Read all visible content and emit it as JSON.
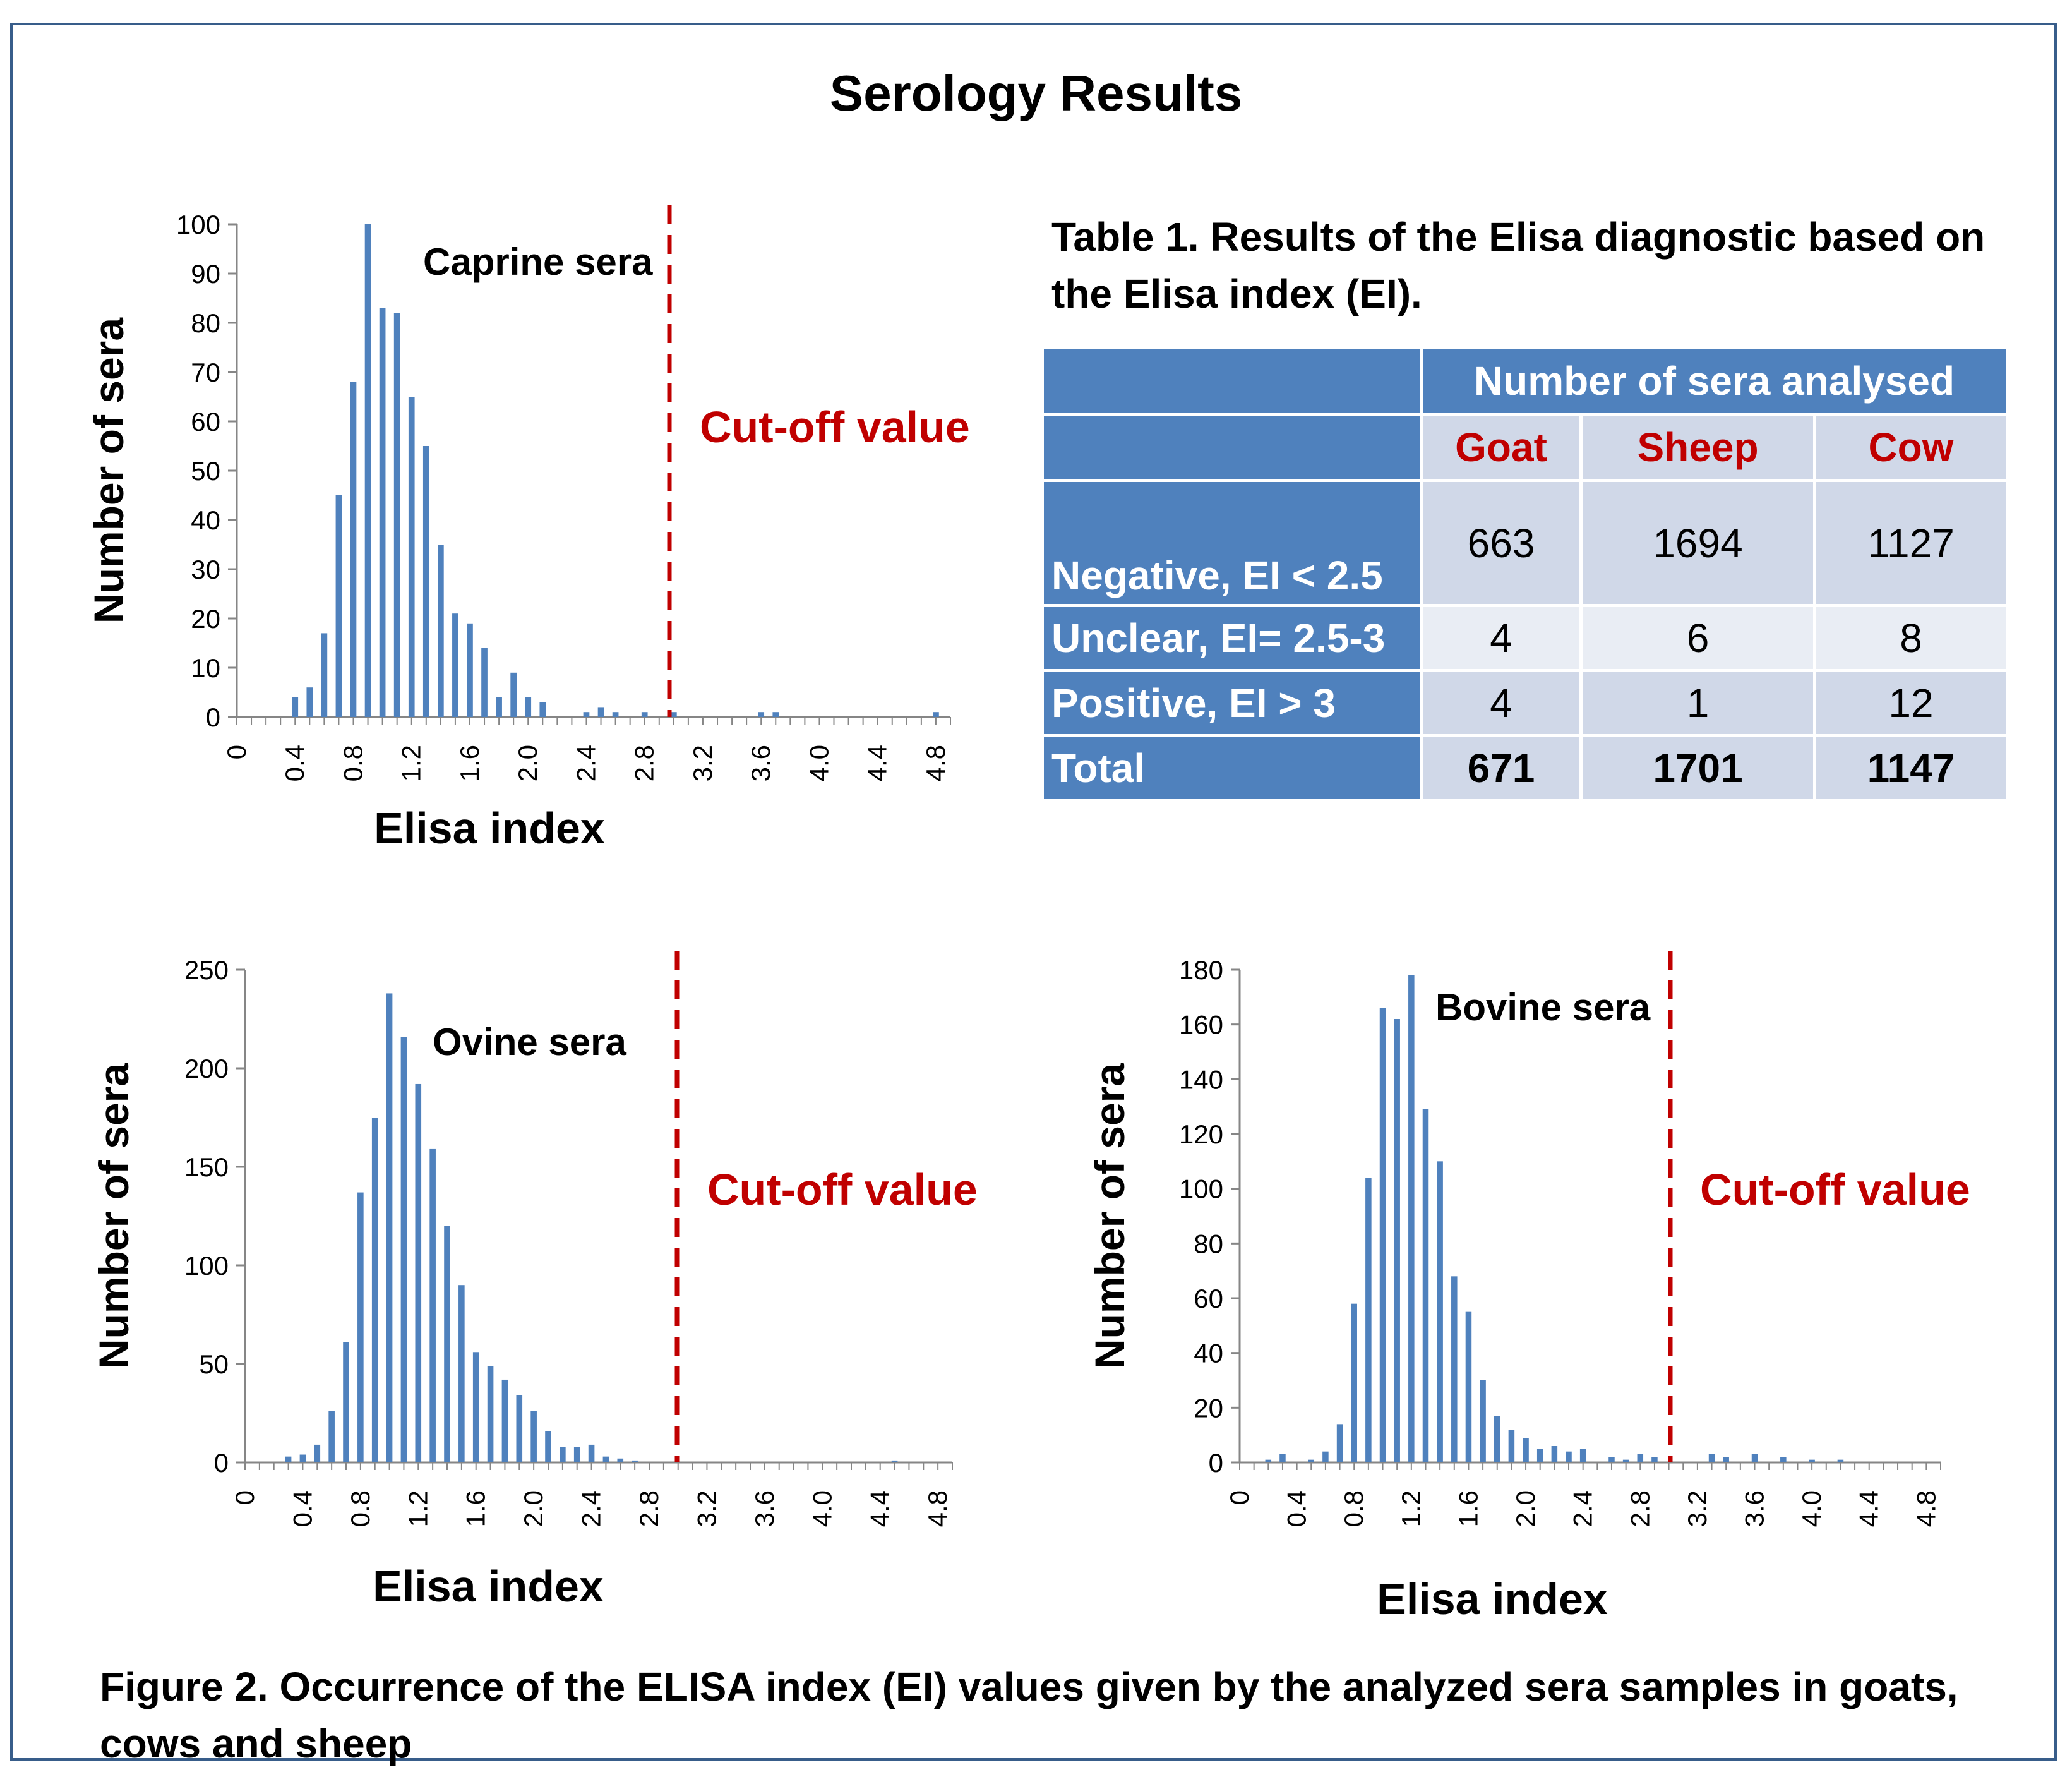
{
  "title": "Serology Results",
  "table": {
    "caption": "Table 1. Results of the Elisa diagnostic based on the Elisa index (EI).",
    "span_header": "Number of sera analysed",
    "columns": [
      "Goat",
      "Sheep",
      "Cow"
    ],
    "rows": [
      {
        "label": "Negative, EI < 2.5",
        "values": [
          "663",
          "1694",
          "1127"
        ]
      },
      {
        "label": "Unclear, EI= 2.5-3",
        "values": [
          "4",
          "6",
          "8"
        ]
      },
      {
        "label": "Positive, EI > 3",
        "values": [
          "4",
          "1",
          "12"
        ]
      },
      {
        "label": "Total",
        "values": [
          "671",
          "1701",
          "1147"
        ]
      }
    ]
  },
  "figure_caption": "Figure 2. Occurrence of the ELISA index (EI) values given by the analyzed sera samples in goats, cows and sheep",
  "colors": {
    "bar": "#4f81bd",
    "cutoff": "#c00000",
    "table_header": "#4f81bd",
    "table_cell_dark": "#d0d8e8",
    "table_cell_light": "#e9edf4",
    "frame": "#385d8a"
  },
  "chart_data": [
    {
      "type": "bar",
      "id": "caprine",
      "annotation": "Caprine sera",
      "cutoff_label": "Cut-off value",
      "cutoff_x": 3.0,
      "xlabel": "Elisa index",
      "ylabel": "Number of sera",
      "ylim": [
        0,
        100
      ],
      "yticks": [
        0,
        10,
        20,
        30,
        40,
        50,
        60,
        70,
        80,
        90,
        100
      ],
      "xticks": [
        "0",
        "0.4",
        "0.8",
        "1.2",
        "1.6",
        "2.0",
        "2.4",
        "2.8",
        "3.2",
        "3.6",
        "4.0",
        "4.4",
        "4.8"
      ],
      "x": [
        0.4,
        0.5,
        0.6,
        0.7,
        0.8,
        0.9,
        1.0,
        1.1,
        1.2,
        1.3,
        1.4,
        1.5,
        1.6,
        1.7,
        1.8,
        1.9,
        2.0,
        2.1,
        2.4,
        2.5,
        2.6,
        2.8,
        3.0,
        3.6,
        3.7,
        4.8
      ],
      "values": [
        4,
        6,
        17,
        45,
        68,
        100,
        83,
        82,
        65,
        55,
        35,
        21,
        19,
        14,
        4,
        9,
        4,
        3,
        1,
        2,
        1,
        1,
        1,
        1,
        1,
        1
      ]
    },
    {
      "type": "bar",
      "id": "ovine",
      "annotation": "Ovine sera",
      "cutoff_label": "Cut-off value",
      "cutoff_x": 3.0,
      "xlabel": "Elisa index",
      "ylabel": "Number of sera",
      "ylim": [
        0,
        250
      ],
      "yticks": [
        0,
        50,
        100,
        150,
        200,
        250
      ],
      "xticks": [
        "0",
        "0.4",
        "0.8",
        "1.2",
        "1.6",
        "2.0",
        "2.4",
        "2.8",
        "3.2",
        "3.6",
        "4.0",
        "4.4",
        "4.8"
      ],
      "x": [
        0.3,
        0.4,
        0.5,
        0.6,
        0.7,
        0.8,
        0.9,
        1.0,
        1.1,
        1.2,
        1.3,
        1.4,
        1.5,
        1.6,
        1.7,
        1.8,
        1.9,
        2.0,
        2.1,
        2.2,
        2.3,
        2.4,
        2.5,
        2.6,
        2.7,
        4.5
      ],
      "values": [
        3,
        4,
        9,
        26,
        61,
        137,
        175,
        238,
        216,
        192,
        159,
        120,
        90,
        56,
        49,
        42,
        34,
        26,
        16,
        8,
        8,
        9,
        3,
        2,
        1,
        1
      ]
    },
    {
      "type": "bar",
      "id": "bovine",
      "annotation": "Bovine sera",
      "cutoff_label": "Cut-off value",
      "cutoff_x": 3.0,
      "xlabel": "Elisa index",
      "ylabel": "Number of sera",
      "ylim": [
        0,
        180
      ],
      "yticks": [
        0,
        20,
        40,
        60,
        80,
        100,
        120,
        140,
        160,
        180
      ],
      "xticks": [
        "0",
        "0.4",
        "0.8",
        "1.2",
        "1.6",
        "2.0",
        "2.4",
        "2.8",
        "3.2",
        "3.6",
        "4.0",
        "4.4",
        "4.8"
      ],
      "x": [
        0.2,
        0.3,
        0.5,
        0.6,
        0.7,
        0.8,
        0.9,
        1.0,
        1.1,
        1.2,
        1.3,
        1.4,
        1.5,
        1.6,
        1.7,
        1.8,
        1.9,
        2.0,
        2.1,
        2.2,
        2.3,
        2.4,
        2.6,
        2.7,
        2.8,
        2.9,
        3.3,
        3.4,
        3.6,
        3.8,
        4.0,
        4.2
      ],
      "values": [
        1,
        3,
        1,
        4,
        14,
        58,
        104,
        166,
        162,
        178,
        129,
        110,
        68,
        55,
        30,
        17,
        12,
        9,
        5,
        6,
        4,
        5,
        2,
        1,
        3,
        2,
        3,
        2,
        3,
        2,
        1,
        1
      ]
    }
  ]
}
